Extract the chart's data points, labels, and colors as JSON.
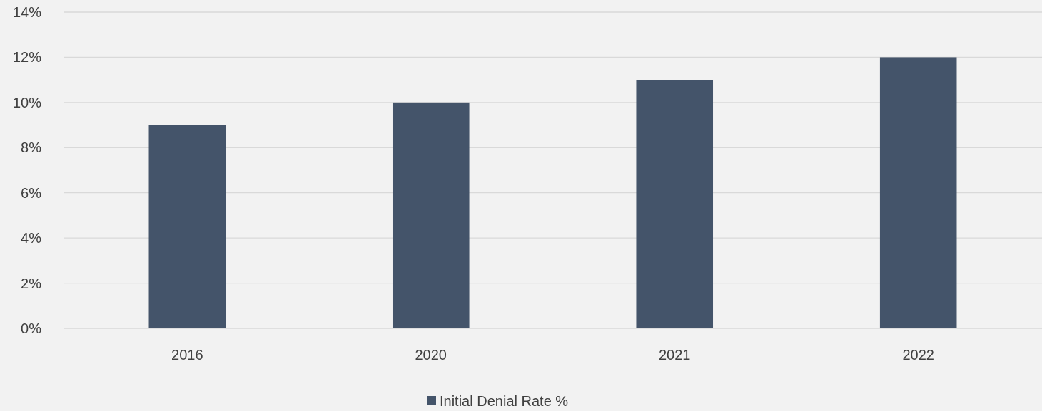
{
  "chart_data": {
    "type": "bar",
    "categories": [
      "2016",
      "2020",
      "2021",
      "2022"
    ],
    "series": [
      {
        "name": "Initial Denial Rate %",
        "color": "#44546a",
        "values": [
          9,
          10,
          11,
          12
        ]
      }
    ],
    "ylim": [
      0,
      14
    ],
    "yticks": [
      {
        "value": 0,
        "label": "0%"
      },
      {
        "value": 2,
        "label": "2%"
      },
      {
        "value": 4,
        "label": "4%"
      },
      {
        "value": 6,
        "label": "6%"
      },
      {
        "value": 8,
        "label": "8%"
      },
      {
        "value": 10,
        "label": "10%"
      },
      {
        "value": 12,
        "label": "12%"
      },
      {
        "value": 14,
        "label": "14%"
      }
    ],
    "grid": "y",
    "legend": "bottom"
  }
}
